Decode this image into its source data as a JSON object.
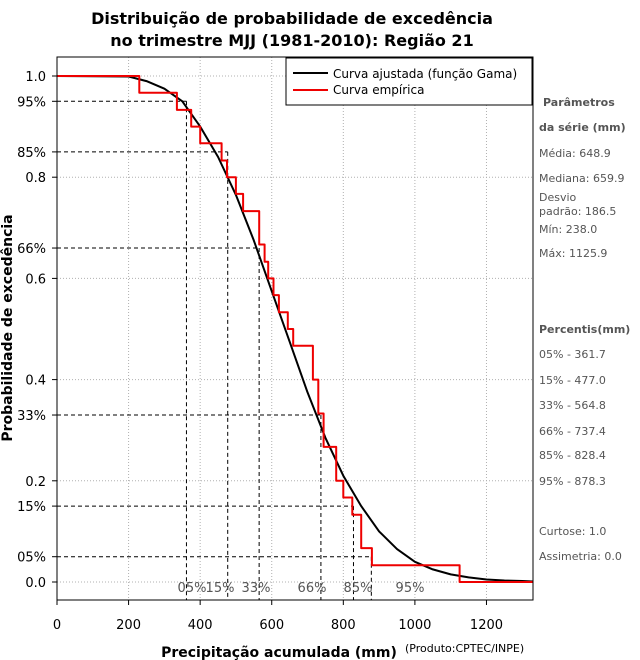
{
  "chart_data": {
    "type": "line",
    "title_lines": [
      "Distribuição de probabilidade de excedência",
      "no trimestre MJJ (1981-2010): Região 21"
    ],
    "xlabel": "Precipitação acumulada (mm)",
    "ylabel": "Probabilidade de excedência",
    "xlim": [
      0,
      1330
    ],
    "ylim": [
      0,
      1
    ],
    "x_ticks": [
      0,
      200,
      400,
      600,
      800,
      1000,
      1200
    ],
    "y_ticks": [
      {
        "value": 1.0,
        "label": "1.0"
      },
      {
        "value": 0.95,
        "label": "95%"
      },
      {
        "value": 0.85,
        "label": "85%"
      },
      {
        "value": 0.8,
        "label": "0.8"
      },
      {
        "value": 0.66,
        "label": "66%"
      },
      {
        "value": 0.6,
        "label": "0.6"
      },
      {
        "value": 0.4,
        "label": "0.4"
      },
      {
        "value": 0.33,
        "label": "33%"
      },
      {
        "value": 0.2,
        "label": "0.2"
      },
      {
        "value": 0.15,
        "label": "15%"
      },
      {
        "value": 0.05,
        "label": "05%"
      },
      {
        "value": 0.0,
        "label": "0.0"
      }
    ],
    "grid": true,
    "legend_position": "top-right",
    "series": [
      {
        "name": "Curva ajustada (função Gama)",
        "color": "#000000",
        "x": [
          0,
          200,
          250,
          300,
          350,
          400,
          450,
          500,
          550,
          600,
          650,
          700,
          750,
          800,
          850,
          900,
          950,
          1000,
          1050,
          1100,
          1150,
          1200,
          1250,
          1300,
          1330
        ],
        "y": [
          1.0,
          0.999,
          0.99,
          0.975,
          0.95,
          0.9,
          0.84,
          0.765,
          0.675,
          0.575,
          0.475,
          0.375,
          0.285,
          0.21,
          0.15,
          0.1,
          0.065,
          0.04,
          0.025,
          0.015,
          0.009,
          0.005,
          0.003,
          0.002,
          0.001
        ]
      },
      {
        "name": "Curva empírica",
        "color": "#ee0000",
        "x": [
          0,
          230,
          230,
          335,
          335,
          375,
          375,
          400,
          400,
          460,
          460,
          475,
          475,
          500,
          500,
          520,
          520,
          565,
          565,
          580,
          580,
          590,
          590,
          605,
          605,
          620,
          620,
          645,
          645,
          660,
          660,
          715,
          715,
          730,
          730,
          745,
          745,
          780,
          780,
          800,
          800,
          825,
          825,
          850,
          850,
          880,
          880,
          1015,
          1015,
          1030,
          1030,
          1125,
          1125,
          1330
        ],
        "y": [
          1.0,
          1.0,
          0.967,
          0.967,
          0.933,
          0.933,
          0.9,
          0.9,
          0.867,
          0.867,
          0.833,
          0.833,
          0.8,
          0.8,
          0.767,
          0.767,
          0.733,
          0.733,
          0.667,
          0.667,
          0.633,
          0.633,
          0.6,
          0.6,
          0.567,
          0.567,
          0.533,
          0.533,
          0.5,
          0.5,
          0.467,
          0.467,
          0.4,
          0.4,
          0.333,
          0.333,
          0.267,
          0.267,
          0.2,
          0.2,
          0.167,
          0.167,
          0.133,
          0.133,
          0.067,
          0.067,
          0.033,
          0.033,
          0.033,
          0.033,
          0.033,
          0.033,
          0.0,
          0.0
        ]
      }
    ],
    "reference_lines": [
      {
        "label": "05%",
        "x": 361.7,
        "y": 0.95
      },
      {
        "label": "15%",
        "x": 477.0,
        "y": 0.85
      },
      {
        "label": "33%",
        "x": 564.8,
        "y": 0.66
      },
      {
        "label": "66%",
        "x": 737.4,
        "y": 0.33
      },
      {
        "label": "85%",
        "x": 828.4,
        "y": 0.15
      },
      {
        "label": "95%",
        "x": 878.3,
        "y": 0.05
      }
    ]
  },
  "sidebar": {
    "params_title_1": "Parâmetros",
    "params_title_2": "da série (mm)",
    "media": "Média: 648.9",
    "mediana": "Mediana: 659.9",
    "desvio_1": "Desvio",
    "desvio_2": "padrão: 186.5",
    "min": "Mín: 238.0",
    "max": "Máx: 1125.9",
    "percentis_title": "Percentis(mm)",
    "p05": "05% - 361.7",
    "p15": "15% - 477.0",
    "p33": "33% - 564.8",
    "p66": "66% - 737.4",
    "p85": "85% - 828.4",
    "p95": "95% - 878.3",
    "curtose": "Curtose: 1.0",
    "assimetria": "Assimetria: 0.0"
  },
  "credit": "(Produto:CPTEC/INPE)"
}
